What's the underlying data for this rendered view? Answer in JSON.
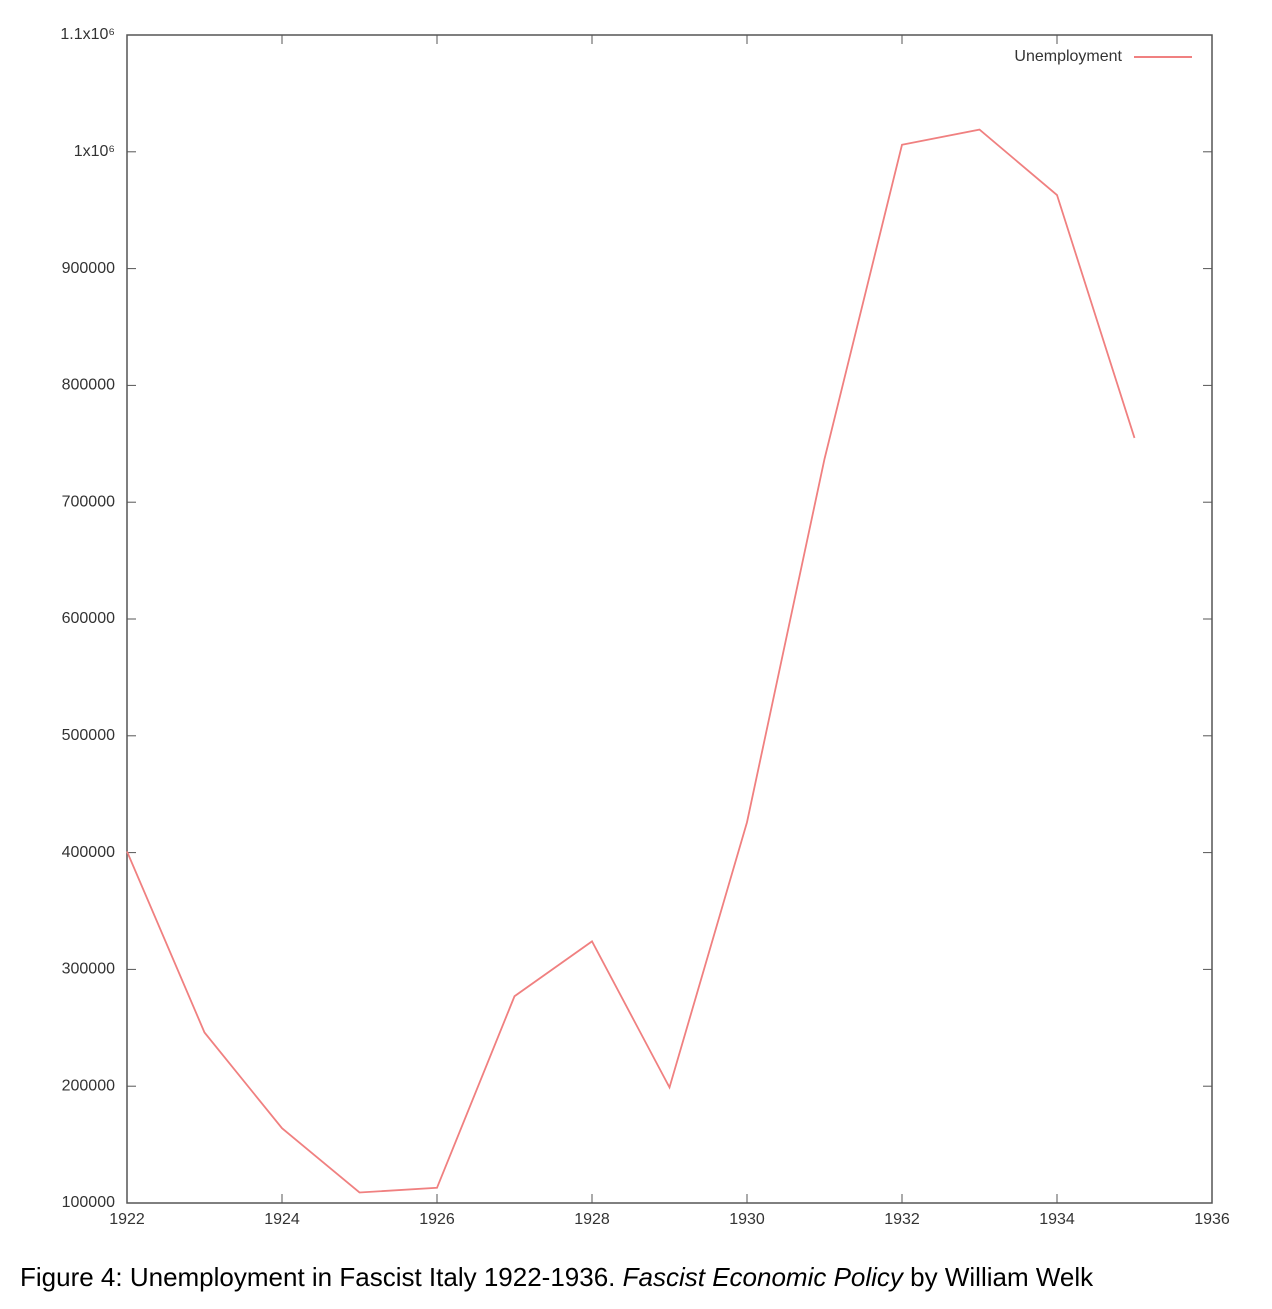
{
  "chart_data": {
    "type": "line",
    "x": [
      1922,
      1923,
      1924,
      1925,
      1926,
      1927,
      1928,
      1929,
      1930,
      1931,
      1932,
      1933,
      1934,
      1935
    ],
    "series": [
      {
        "name": "Unemployment",
        "color": "#f08080",
        "values": [
          401000,
          246000,
          164000,
          109000,
          113000,
          277000,
          324000,
          199000,
          426000,
          737000,
          1006000,
          1019000,
          963000,
          755000
        ]
      }
    ],
    "xlim": [
      1922,
      1936
    ],
    "xticks": [
      1922,
      1924,
      1926,
      1928,
      1930,
      1932,
      1934,
      1936
    ],
    "ylim": [
      100000,
      1100000
    ],
    "yticks": [
      100000,
      200000,
      300000,
      400000,
      500000,
      600000,
      700000,
      800000,
      900000,
      {
        "value": 1000000,
        "label": "1x10⁶"
      },
      {
        "value": 1100000,
        "label": "1.1x10⁶"
      }
    ],
    "grid": false,
    "legend": "top-right"
  },
  "caption": {
    "prefix": "Figure 4: Unemployment in Fascist Italy 1922-1936. ",
    "italic": "Fascist Economic Policy",
    "suffix": " by William Welk"
  }
}
